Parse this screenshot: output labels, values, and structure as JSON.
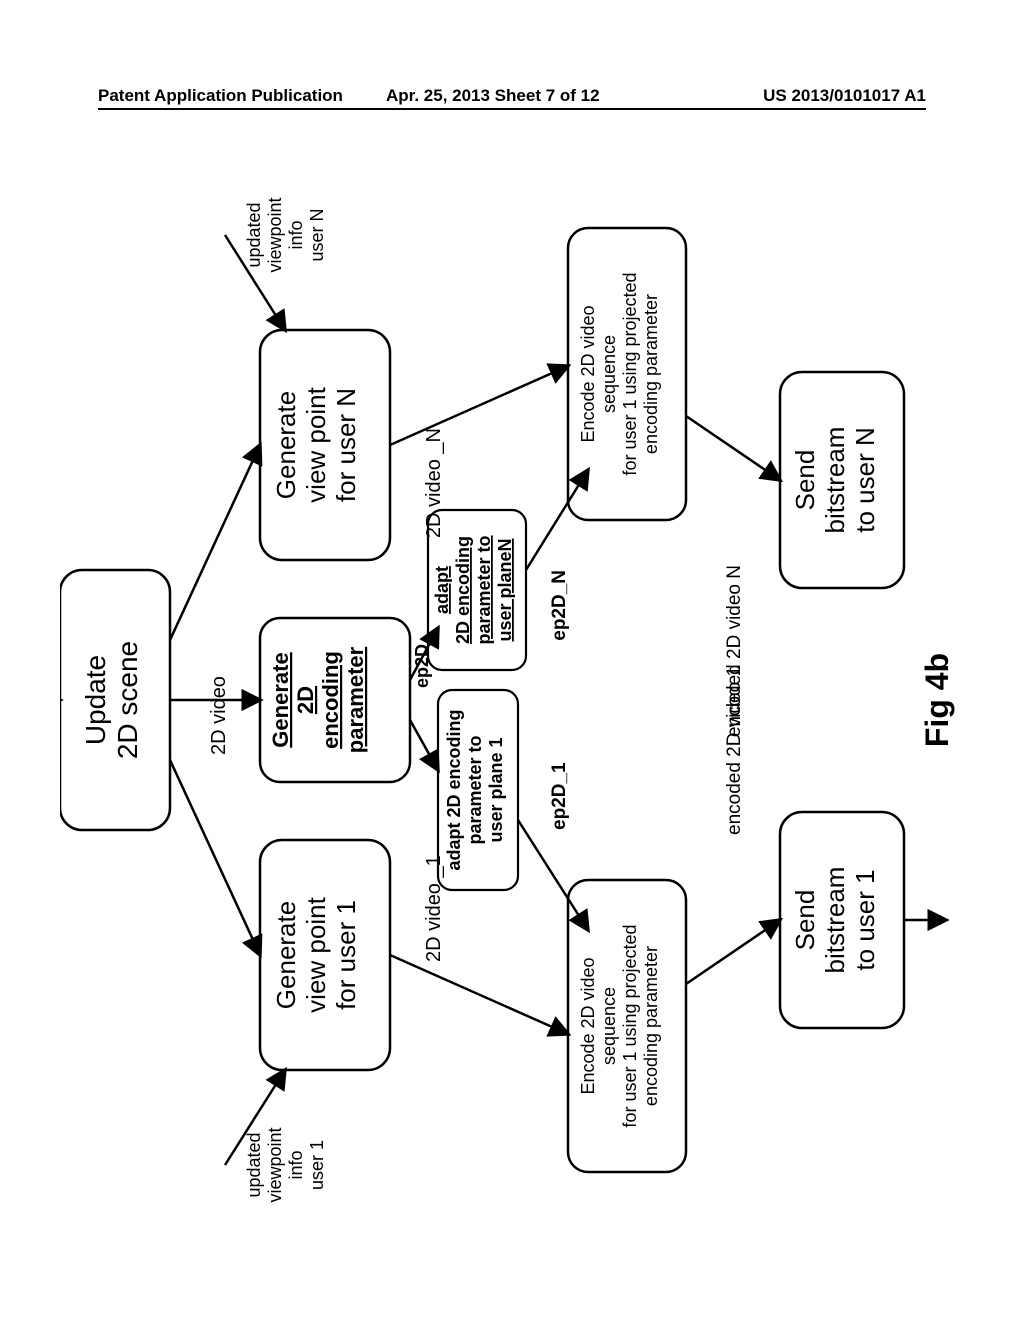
{
  "header": {
    "left": "Patent Application Publication",
    "center": "Apr. 25, 2013  Sheet 7 of 12",
    "right": "US 2013/0101017 A1"
  },
  "figure_label": "Fig 4b",
  "nodes": {
    "update": {
      "lines": [
        "Update",
        "2D scene"
      ],
      "fs": 28
    },
    "gen1": {
      "lines": [
        "Generate",
        "view point",
        "for user 1"
      ],
      "fs": 26
    },
    "genEP": {
      "lines": [
        "Generate",
        "2D",
        "encoding",
        "parameter"
      ],
      "fs": 22,
      "bold": true,
      "underline": true
    },
    "genN": {
      "lines": [
        "Generate",
        "view point",
        "for user N"
      ],
      "fs": 26
    },
    "adapt1": {
      "lines": [
        "adapt 2D encoding",
        "parameter to",
        "user plane 1"
      ],
      "fs": 18,
      "bold": true
    },
    "adaptN": {
      "lines": [
        "adapt",
        "2D encoding",
        "parameter to",
        "user planeN"
      ],
      "fs": 18,
      "bold": true,
      "underline": true
    },
    "enc1": {
      "lines": [
        "Encode 2D video",
        "sequence",
        "for user 1 using projected",
        "encoding parameter"
      ],
      "fs": 18
    },
    "encN": {
      "lines": [
        "Encode 2D video",
        "sequence",
        "for user 1 using projected",
        "encoding parameter"
      ],
      "fs": 18
    },
    "send1": {
      "lines": [
        "Send",
        "bitstream",
        "to user 1"
      ],
      "fs": 26
    },
    "sendN": {
      "lines": [
        "Send",
        "bitstream",
        "to user N"
      ],
      "fs": 26
    }
  },
  "labels": {
    "upd_vp_1": {
      "lines": [
        "updated",
        "viewpoint",
        "info",
        "user 1"
      ],
      "fs": 18
    },
    "upd_vp_N": {
      "lines": [
        "updated",
        "viewpoint",
        "info",
        "user N"
      ],
      "fs": 18
    },
    "v2d": "2D video",
    "v2d_1": "2D video _1",
    "v2d_N": "2D video _N",
    "ep2D": "ep2D",
    "ep2D_1": "ep2D_1",
    "ep2D_N": "ep2D_N",
    "encv1": "encoded 2D video 1",
    "encvN": "encoded 2D video N"
  },
  "style": {
    "stroke": "#000000",
    "stroke_width": 2.5,
    "bg": "#ffffff",
    "corner_radius": 22
  }
}
